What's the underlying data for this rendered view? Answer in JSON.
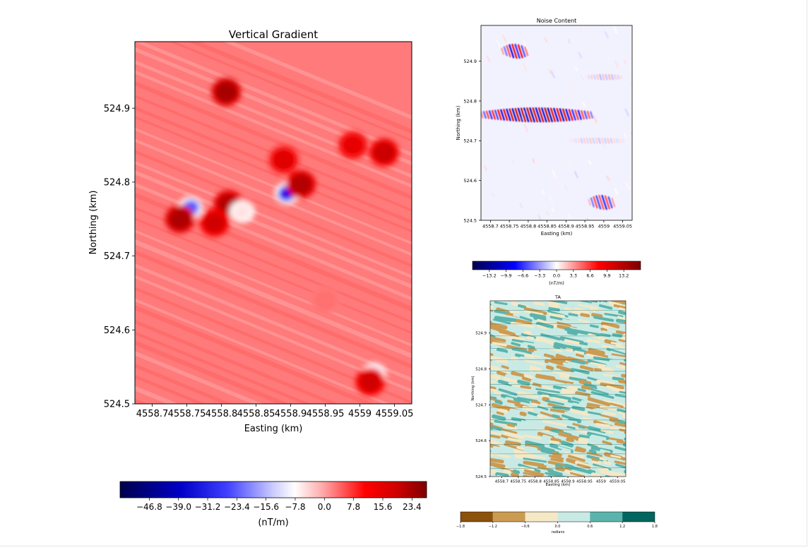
{
  "chart_data": [
    {
      "type": "heatmap",
      "title": "Vertical Gradient",
      "xlabel": "Easting (km)",
      "ylabel": "Northing (km)",
      "xlim": [
        4558.675,
        4559.075
      ],
      "ylim": [
        524.5,
        524.99
      ],
      "x_ticks": [
        4558.7,
        4558.75,
        4558.8,
        4558.85,
        4558.9,
        4558.95,
        4559,
        4559.05
      ],
      "x_tick_labels": [
        "4558.7",
        "4558.75",
        "4558.8",
        "4558.85",
        "4558.9",
        "4558.95",
        "4559",
        "4559.05"
      ],
      "y_ticks": [
        524.5,
        524.6,
        524.7,
        524.8,
        524.9
      ],
      "y_tick_labels": [
        "524.5",
        "524.6",
        "524.7",
        "524.8",
        "524.9"
      ],
      "colormap": "seismic",
      "background_value": 9.0,
      "anomalies": [
        {
          "easting": 4558.755,
          "northing": 524.765,
          "value": -28.0
        },
        {
          "easting": 4558.895,
          "northing": 524.785,
          "value": -40.0
        },
        {
          "easting": 4558.807,
          "northing": 524.922,
          "value": 22.0
        },
        {
          "easting": 4558.74,
          "northing": 524.75,
          "value": 21.0
        },
        {
          "easting": 4558.81,
          "northing": 524.77,
          "value": 20.0
        },
        {
          "easting": 4558.915,
          "northing": 524.797,
          "value": 20.0
        },
        {
          "easting": 4558.79,
          "northing": 524.745,
          "value": 16.0
        },
        {
          "easting": 4559.035,
          "northing": 524.84,
          "value": 17.0
        },
        {
          "easting": 4558.99,
          "northing": 524.85,
          "value": 13.0
        },
        {
          "easting": 4558.89,
          "northing": 524.83,
          "value": 14.0
        },
        {
          "easting": 4558.83,
          "northing": 524.76,
          "value": -6.0
        },
        {
          "easting": 4559.02,
          "northing": 524.54,
          "value": -10.0
        },
        {
          "easting": 4559.015,
          "northing": 524.53,
          "value": 16.0
        },
        {
          "easting": 4558.95,
          "northing": 524.64,
          "value": 2.0
        }
      ],
      "colorbar": {
        "label": "(nT/m)",
        "range": [
          -54.6,
          27.3
        ],
        "ticks": [
          -46.8,
          -39.0,
          -31.2,
          -23.4,
          -15.6,
          -7.8,
          0.0,
          7.8,
          15.6,
          23.4
        ],
        "tick_labels": [
          "−46.8",
          "−39.0",
          "−31.2",
          "−23.4",
          "−15.6",
          "−7.8",
          "0.0",
          "7.8",
          "15.6",
          "23.4"
        ]
      }
    },
    {
      "type": "heatmap",
      "title": "Noise Content",
      "xlabel": "Easting (km)",
      "ylabel": "Northing (km)",
      "xlim": [
        4558.675,
        4559.075
      ],
      "ylim": [
        524.5,
        524.99
      ],
      "x_ticks": [
        4558.7,
        4558.75,
        4558.8,
        4558.85,
        4558.9,
        4558.95,
        4559,
        4559.05
      ],
      "x_tick_labels": [
        "4558.7",
        "4558.75",
        "4558.8",
        "4558.85",
        "4558.9",
        "4558.95",
        "4559",
        "4559.05"
      ],
      "y_ticks": [
        524.5,
        524.6,
        524.7,
        524.8,
        524.9
      ],
      "y_tick_labels": [
        "524.5",
        "524.6",
        "524.7",
        "524.8",
        "524.9"
      ],
      "colormap": "seismic",
      "bands": [
        {
          "northing": 524.765,
          "easting_range": [
            4558.675,
            4558.97
          ],
          "amplitude": 14.0
        },
        {
          "northing": 524.925,
          "easting_range": [
            4558.73,
            4558.8
          ],
          "amplitude": 10.0
        },
        {
          "northing": 524.545,
          "easting_range": [
            4558.96,
            4559.03
          ],
          "amplitude": 8.0
        },
        {
          "northing": 524.7,
          "easting_range": [
            4558.9,
            4559.06
          ],
          "amplitude": 2.0
        },
        {
          "northing": 524.86,
          "easting_range": [
            4558.95,
            4559.05
          ],
          "amplitude": 2.5
        }
      ],
      "colorbar": {
        "label": "(nT/m)",
        "range": [
          -16.5,
          16.5
        ],
        "ticks": [
          -13.2,
          -9.9,
          -6.6,
          -3.3,
          0.0,
          3.3,
          6.6,
          9.9,
          13.2
        ],
        "tick_labels": [
          "−13.2",
          "−9.9",
          "−6.6",
          "−3.3",
          "0.0",
          "3.3",
          "6.6",
          "9.9",
          "13.2"
        ]
      }
    },
    {
      "type": "heatmap",
      "title": "TA",
      "xlabel": "Easting (km)",
      "ylabel": "Northing (km)",
      "xlim": [
        4558.665,
        4559.075
      ],
      "ylim": [
        524.5,
        524.99
      ],
      "x_ticks": [
        4558.7,
        4558.75,
        4558.8,
        4558.85,
        4558.9,
        4558.95,
        4559,
        4559.05
      ],
      "x_tick_labels": [
        "4558.7",
        "4558.75",
        "4558.8",
        "4558.85",
        "4558.9",
        "4558.95",
        "4559",
        "4559.05"
      ],
      "y_ticks": [
        524.5,
        524.6,
        524.7,
        524.8,
        524.9
      ],
      "y_tick_labels": [
        "524.5",
        "524.6",
        "524.7",
        "524.8",
        "524.9"
      ],
      "colormap": "BrBG (6 discrete levels)",
      "level_colors": [
        "#8c510a",
        "#cc9b52",
        "#f5e8c6",
        "#c9eae4",
        "#5ab4ac",
        "#01665e"
      ],
      "visible_levels": [
        -0.9,
        -0.3,
        0.3,
        0.9
      ],
      "colorbar": {
        "label": "radians",
        "range": [
          -1.8,
          1.8
        ],
        "ticks": [
          -1.8,
          -1.2,
          -0.6,
          0.0,
          0.6,
          1.2,
          1.8
        ],
        "tick_labels": [
          "−1.8",
          "−1.2",
          "−0.6",
          "0.0",
          "0.6",
          "1.2",
          "1.8"
        ]
      }
    }
  ]
}
